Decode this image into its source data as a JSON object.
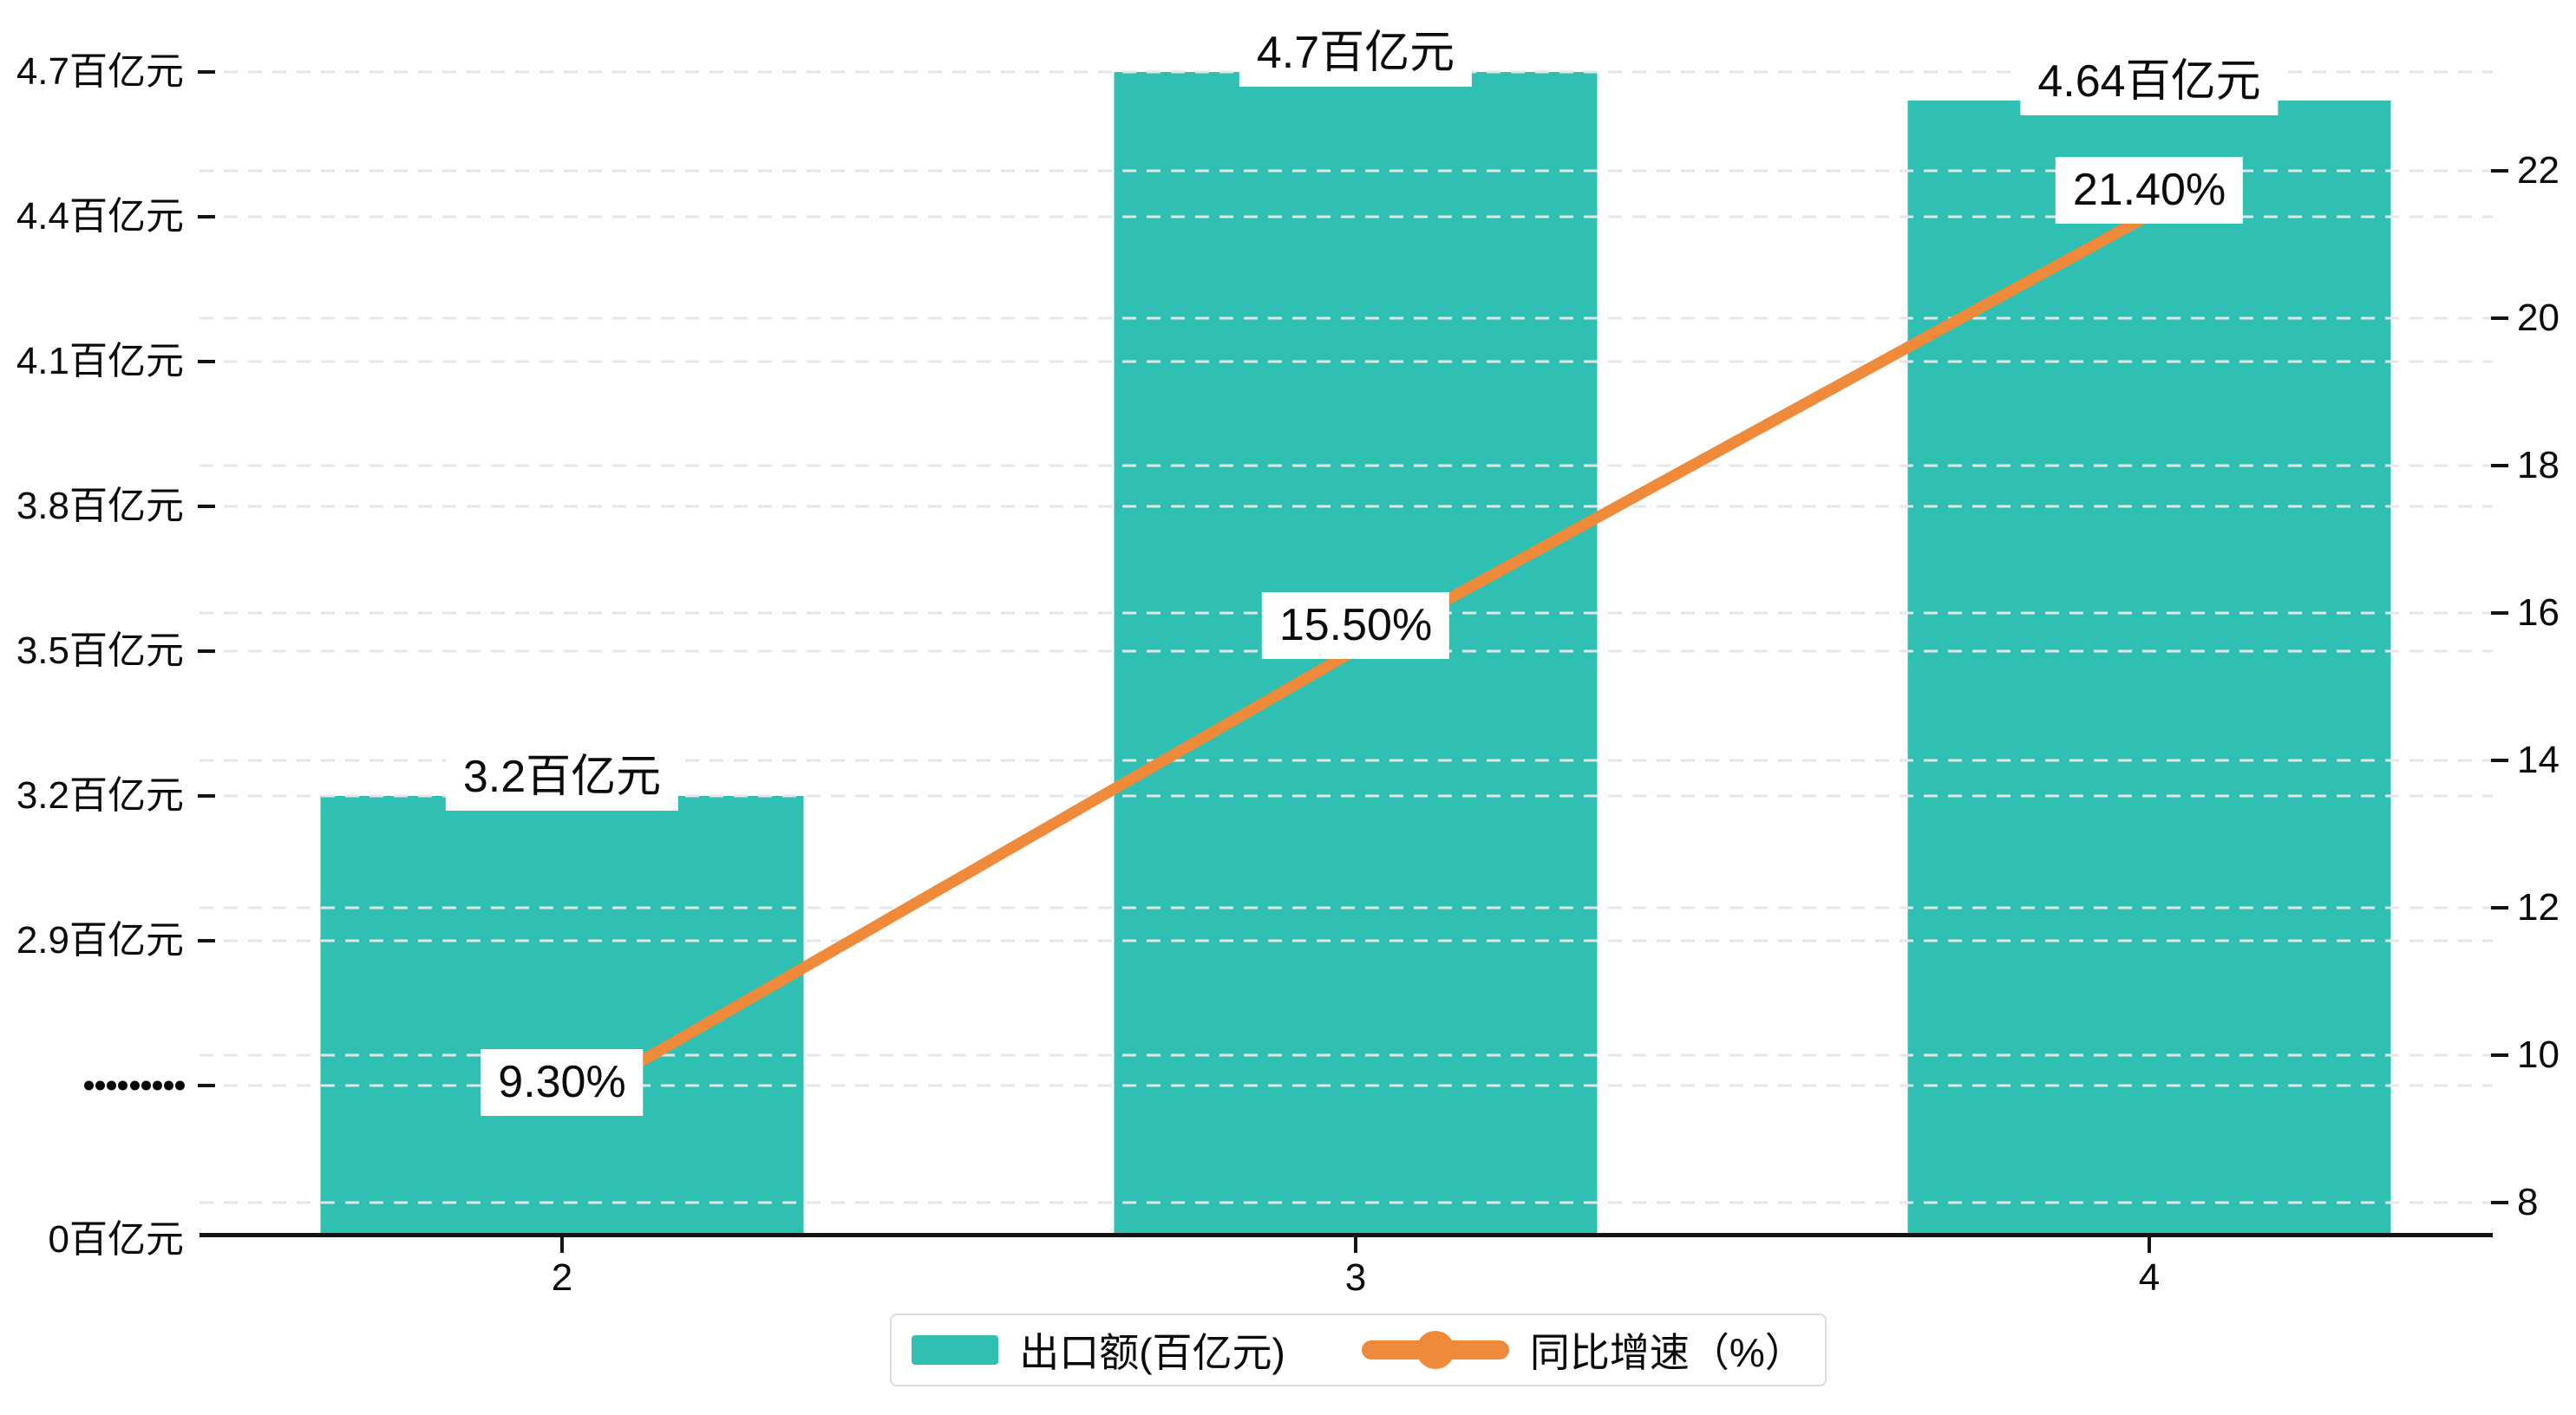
{
  "chart_data": {
    "type": "bar",
    "subtype": "bar-line-combo",
    "categories": [
      "2",
      "3",
      "4"
    ],
    "series": [
      {
        "name": "出口额(百亿元)",
        "type": "bar",
        "axis": "left",
        "color": "#2FBFB3",
        "values": [
          3.2,
          4.7,
          4.64
        ],
        "labels": [
          "3.2百亿元",
          "4.7百亿元",
          "4.64百亿元"
        ]
      },
      {
        "name": "同比增速（%）",
        "type": "line",
        "axis": "right",
        "color": "#EF8A3A",
        "values": [
          9.3,
          15.5,
          21.4
        ],
        "labels": [
          "9.30%",
          "15.50%",
          "21.40%"
        ]
      }
    ],
    "left_axis": {
      "unit": "百亿元",
      "tick_values": [
        4.7,
        4.4,
        4.1,
        3.8,
        3.5,
        3.2,
        2.9
      ],
      "tick_labels": [
        "4.7百亿元",
        "4.4百亿元",
        "4.1百亿元",
        "3.8百亿元",
        "3.5百亿元",
        "3.2百亿元",
        "2.9百亿元"
      ],
      "break_symbol": "·········",
      "zero_label": "0百亿元",
      "broken": true
    },
    "right_axis": {
      "tick_values": [
        22,
        20,
        18,
        16,
        14,
        12,
        10,
        8
      ],
      "tick_labels": [
        "22",
        "20",
        "18",
        "16",
        "14",
        "12",
        "10",
        "8"
      ],
      "range": [
        8,
        22
      ]
    },
    "legend": {
      "position": "bottom",
      "items": [
        "出口额(百亿元)",
        "同比增速（%）"
      ]
    },
    "grid": {
      "show": true,
      "style": "dashed",
      "color": "#e6e6e6"
    },
    "axis_color": "#141414",
    "label_box_color": "#ffffff",
    "background": "#ffffff"
  }
}
